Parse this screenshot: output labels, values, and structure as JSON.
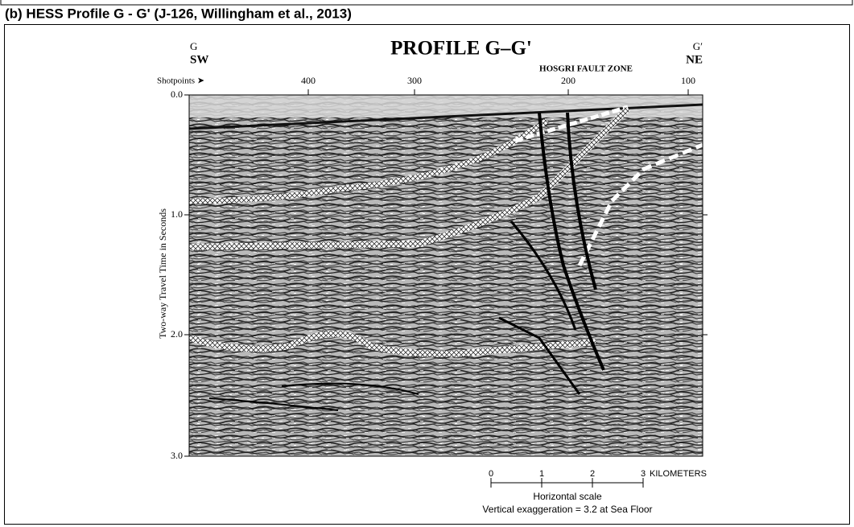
{
  "caption": "(b) HESS Profile G - G' (J-126, Willingham et al., 2013)",
  "figure": {
    "title": "PROFILE G–G'",
    "left_end": {
      "label": "G",
      "direction": "SW"
    },
    "right_end": {
      "label": "G′",
      "direction": "NE"
    },
    "shotpoints_label": "Shotpoints ➤",
    "shotpoints": [
      "400",
      "300",
      "200",
      "100"
    ],
    "fault_zone": "HOSGRI FAULT ZONE",
    "y_axis_label": "Two-way Travel Time in Seconds",
    "y_ticks": [
      "0.0",
      "1.0",
      "2.0",
      "3.0"
    ],
    "scale_ticks": [
      "0",
      "1",
      "2",
      "3"
    ],
    "scale_unit": "KILOMETERS",
    "scale_title": "Horizontal scale",
    "vertical_exaggeration": "Vertical exaggeration = 3.2 at Sea Floor"
  }
}
